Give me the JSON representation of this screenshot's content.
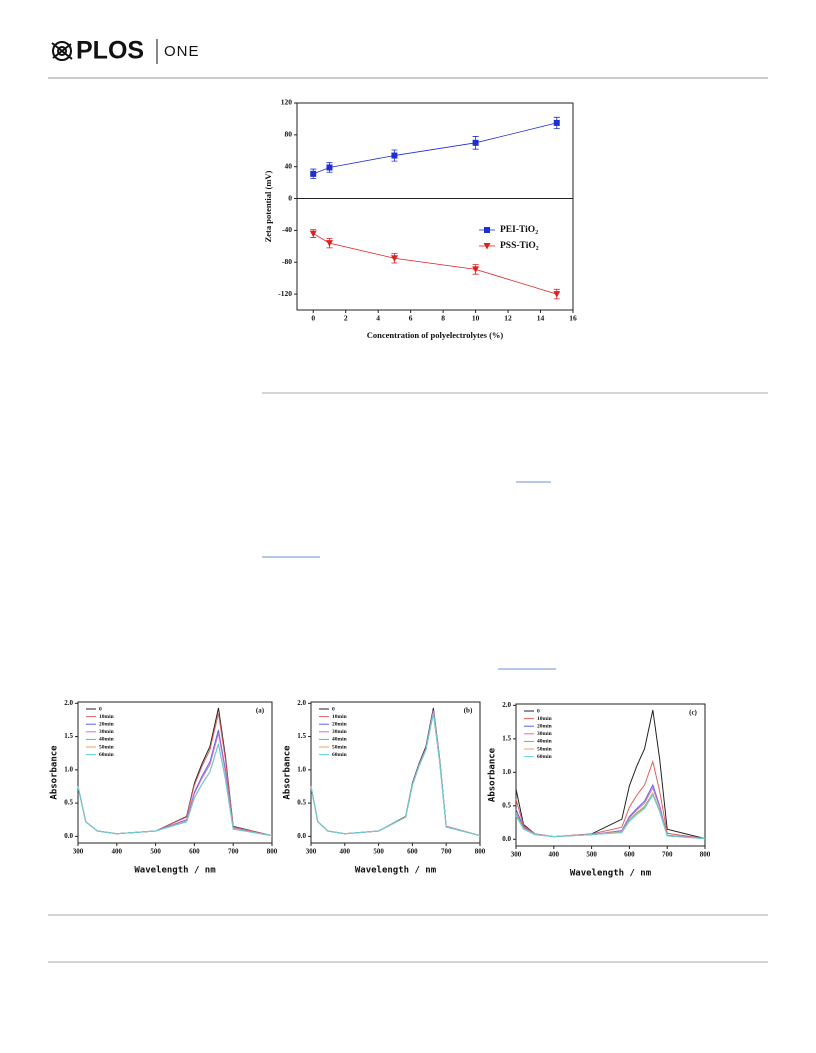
{
  "header": {
    "logo": "PLOS",
    "journal": "ONE"
  },
  "chart_data": [
    {
      "type": "line",
      "ylabel": "Zeta potential (mV)",
      "xlabel": "Concentration of polyelectrolytes (%)",
      "xlim": [
        -1,
        16
      ],
      "xticks": [
        0,
        2,
        4,
        6,
        8,
        10,
        12,
        14,
        16
      ],
      "ylim": [
        -140,
        120
      ],
      "yticks": [
        -120,
        -80,
        -40,
        0,
        40,
        80,
        120
      ],
      "legend": "right",
      "series": [
        {
          "name": "PEI-TiO₂",
          "color": "#1f2fd0",
          "marker": "square",
          "x": [
            0,
            1,
            5,
            10,
            15
          ],
          "values": [
            31,
            39,
            54,
            70,
            95
          ],
          "errors": [
            6,
            6,
            7,
            8,
            7
          ]
        },
        {
          "name": "PSS-TiO₂",
          "color": "#e02020",
          "marker": "triangle",
          "x": [
            0,
            1,
            5,
            10,
            15
          ],
          "values": [
            -44,
            -56,
            -75,
            -89,
            -120
          ],
          "errors": [
            5,
            6,
            6,
            6,
            6
          ]
        }
      ]
    },
    {
      "type": "line",
      "panel": "(a)",
      "xlabel": "Wavelength / nm",
      "ylabel": "Absorbance",
      "xlim": [
        300,
        800
      ],
      "xticks": [
        300,
        400,
        500,
        600,
        700,
        800
      ],
      "ylim": [
        -0.1,
        2.02
      ],
      "yticks": [
        {
          "value": 0,
          "label": "0.0"
        },
        0.5,
        {
          "value": 1,
          "label": "1.0"
        },
        1.5,
        {
          "value": 2,
          "label": "2.0"
        }
      ],
      "legend": "upper left",
      "x": [
        300,
        320,
        350,
        400,
        500,
        580,
        600,
        620,
        640,
        662,
        680,
        700,
        800
      ],
      "series": [
        {
          "name": "0",
          "color": "#222222",
          "values": [
            0.75,
            0.22,
            0.08,
            0.04,
            0.08,
            0.3,
            0.8,
            1.1,
            1.35,
            1.93,
            1.2,
            0.15,
            0.01
          ]
        },
        {
          "name": "10min",
          "color": "#e06060",
          "values": [
            0.75,
            0.22,
            0.08,
            0.04,
            0.08,
            0.29,
            0.77,
            1.06,
            1.3,
            1.85,
            1.15,
            0.14,
            0.01
          ]
        },
        {
          "name": "20min",
          "color": "#6060e0",
          "values": [
            0.75,
            0.22,
            0.08,
            0.04,
            0.08,
            0.25,
            0.66,
            0.91,
            1.12,
            1.6,
            1.0,
            0.12,
            0.01
          ]
        },
        {
          "name": "30min",
          "color": "#d070d0",
          "values": [
            0.75,
            0.22,
            0.08,
            0.04,
            0.08,
            0.24,
            0.64,
            0.88,
            1.08,
            1.55,
            0.96,
            0.12,
            0.01
          ]
        },
        {
          "name": "40min",
          "color": "#60c060",
          "values": [
            0.75,
            0.22,
            0.08,
            0.04,
            0.08,
            0.22,
            0.58,
            0.79,
            0.97,
            1.39,
            0.86,
            0.11,
            0.01
          ]
        },
        {
          "name": "50min",
          "color": "#f0a060",
          "values": [
            0.75,
            0.22,
            0.08,
            0.04,
            0.08,
            0.22,
            0.58,
            0.79,
            0.97,
            1.39,
            0.86,
            0.11,
            0.01
          ]
        },
        {
          "name": "60min",
          "color": "#60d0e0",
          "values": [
            0.75,
            0.22,
            0.08,
            0.04,
            0.08,
            0.22,
            0.58,
            0.79,
            0.97,
            1.39,
            0.86,
            0.11,
            0.01
          ]
        }
      ]
    },
    {
      "type": "line",
      "panel": "(b)",
      "xlabel": "Wavelength / nm",
      "ylabel": "Absorbance",
      "xlim": [
        300,
        800
      ],
      "xticks": [
        300,
        400,
        500,
        600,
        700,
        800
      ],
      "ylim": [
        -0.1,
        2.02
      ],
      "yticks": [
        {
          "value": 0,
          "label": "0.0"
        },
        0.5,
        {
          "value": 1,
          "label": "1.0"
        },
        1.5,
        {
          "value": 2,
          "label": "2.0"
        }
      ],
      "legend": "upper left",
      "x": [
        300,
        320,
        350,
        400,
        500,
        580,
        600,
        620,
        640,
        662,
        680,
        700,
        800
      ],
      "series": [
        {
          "name": "0",
          "color": "#222222",
          "values": [
            0.75,
            0.22,
            0.08,
            0.04,
            0.08,
            0.3,
            0.8,
            1.1,
            1.35,
            1.93,
            1.2,
            0.15,
            0.01
          ]
        },
        {
          "name": "10min",
          "color": "#e06060",
          "values": [
            0.75,
            0.22,
            0.08,
            0.04,
            0.08,
            0.29,
            0.78,
            1.08,
            1.32,
            1.89,
            1.18,
            0.15,
            0.01
          ]
        },
        {
          "name": "20min",
          "color": "#6060e0",
          "values": [
            0.75,
            0.22,
            0.08,
            0.04,
            0.08,
            0.29,
            0.78,
            1.08,
            1.32,
            1.89,
            1.18,
            0.15,
            0.01
          ]
        },
        {
          "name": "30min",
          "color": "#d070d0",
          "values": [
            0.75,
            0.22,
            0.08,
            0.04,
            0.08,
            0.29,
            0.78,
            1.08,
            1.32,
            1.89,
            1.18,
            0.15,
            0.01
          ]
        },
        {
          "name": "40min",
          "color": "#60c060",
          "values": [
            0.75,
            0.22,
            0.08,
            0.04,
            0.08,
            0.29,
            0.77,
            1.06,
            1.3,
            1.85,
            1.15,
            0.14,
            0.01
          ]
        },
        {
          "name": "50min",
          "color": "#f0a060",
          "values": [
            0.75,
            0.22,
            0.08,
            0.04,
            0.08,
            0.29,
            0.77,
            1.06,
            1.3,
            1.85,
            1.15,
            0.14,
            0.01
          ]
        },
        {
          "name": "60min",
          "color": "#60d0e0",
          "values": [
            0.75,
            0.22,
            0.08,
            0.04,
            0.08,
            0.29,
            0.77,
            1.06,
            1.3,
            1.85,
            1.15,
            0.14,
            0.01
          ]
        }
      ]
    },
    {
      "type": "line",
      "panel": "(c)",
      "xlabel": "Wavelength / nm",
      "ylabel": "Absorbance",
      "xlim": [
        300,
        800
      ],
      "xticks": [
        300,
        400,
        500,
        600,
        700,
        800
      ],
      "ylim": [
        -0.1,
        2.02
      ],
      "yticks": [
        {
          "value": 0,
          "label": "0.0"
        },
        0.5,
        {
          "value": 1,
          "label": "1.0"
        },
        1.5,
        {
          "value": 2,
          "label": "2.0"
        }
      ],
      "legend": "upper left",
      "x": [
        300,
        320,
        350,
        400,
        500,
        580,
        600,
        620,
        640,
        662,
        680,
        700,
        800
      ],
      "series": [
        {
          "name": "0",
          "color": "#222222",
          "values": [
            0.75,
            0.22,
            0.08,
            0.04,
            0.08,
            0.3,
            0.8,
            1.1,
            1.35,
            1.93,
            1.2,
            0.15,
            0.01
          ]
        },
        {
          "name": "10min",
          "color": "#e06060",
          "values": [
            0.6,
            0.2,
            0.08,
            0.04,
            0.08,
            0.18,
            0.48,
            0.66,
            0.81,
            1.16,
            0.72,
            0.09,
            0.01
          ]
        },
        {
          "name": "20min",
          "color": "#6060e0",
          "values": [
            0.45,
            0.18,
            0.08,
            0.04,
            0.07,
            0.13,
            0.34,
            0.46,
            0.57,
            0.81,
            0.5,
            0.06,
            0.01
          ]
        },
        {
          "name": "30min",
          "color": "#d070d0",
          "values": [
            0.4,
            0.17,
            0.08,
            0.04,
            0.07,
            0.12,
            0.32,
            0.44,
            0.54,
            0.77,
            0.48,
            0.06,
            0.01
          ]
        },
        {
          "name": "40min",
          "color": "#60c060",
          "values": [
            0.38,
            0.16,
            0.07,
            0.04,
            0.07,
            0.11,
            0.29,
            0.4,
            0.49,
            0.69,
            0.43,
            0.05,
            0.01
          ]
        },
        {
          "name": "50min",
          "color": "#f0a060",
          "values": [
            0.36,
            0.16,
            0.07,
            0.04,
            0.07,
            0.11,
            0.28,
            0.39,
            0.47,
            0.68,
            0.42,
            0.05,
            0.01
          ]
        },
        {
          "name": "60min",
          "color": "#60d0e0",
          "values": [
            0.35,
            0.15,
            0.07,
            0.04,
            0.07,
            0.1,
            0.27,
            0.37,
            0.46,
            0.66,
            0.41,
            0.05,
            0.01
          ]
        }
      ]
    }
  ]
}
